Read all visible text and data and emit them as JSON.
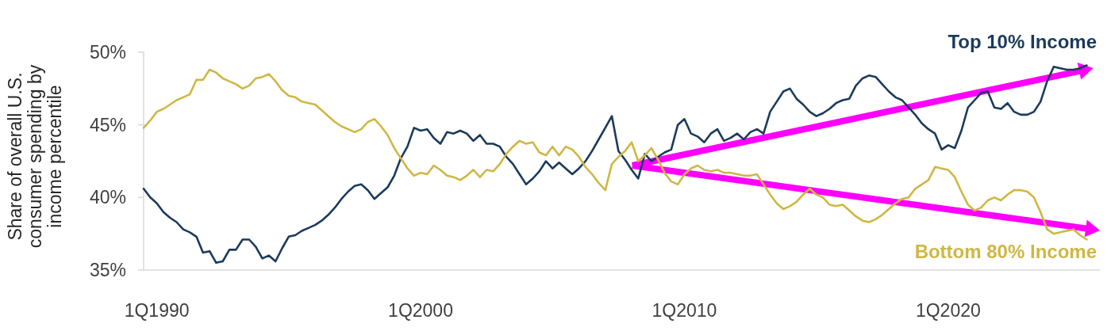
{
  "chart_data": {
    "type": "line",
    "ylabel": "Share of overall U.S. consumer spending by income percentile",
    "categories": [
      null,
      null,
      "1Q1990",
      null,
      null,
      null,
      null,
      null,
      null,
      null,
      null,
      null,
      null,
      null,
      null,
      null,
      null,
      null,
      null,
      null,
      null,
      null,
      null,
      null,
      null,
      null,
      null,
      null,
      null,
      null,
      null,
      null,
      null,
      null,
      null,
      null,
      null,
      null,
      null,
      null,
      null,
      null,
      "1Q2000",
      null,
      null,
      null,
      null,
      null,
      null,
      null,
      null,
      null,
      null,
      null,
      null,
      null,
      null,
      null,
      null,
      null,
      null,
      null,
      null,
      null,
      null,
      null,
      null,
      null,
      null,
      null,
      null,
      null,
      null,
      null,
      null,
      null,
      null,
      null,
      null,
      null,
      null,
      null,
      "1Q2010",
      null,
      null,
      null,
      null,
      null,
      null,
      null,
      null,
      null,
      null,
      null,
      null,
      null,
      null,
      null,
      null,
      null,
      null,
      null,
      null,
      null,
      null,
      null,
      null,
      null,
      null,
      null,
      null,
      null,
      null,
      null,
      null,
      null,
      null,
      null,
      null,
      null,
      null,
      null,
      "1Q2020",
      null,
      null,
      null,
      null,
      null,
      null,
      null,
      null,
      null,
      null,
      null,
      null,
      null,
      null,
      null,
      null,
      null,
      null,
      null,
      null,
      null,
      null,
      null
    ],
    "ylim": [
      35,
      50
    ],
    "yticks": [
      {
        "value": 35,
        "label": "35%"
      },
      {
        "value": 40,
        "label": "40%"
      },
      {
        "value": 45,
        "label": "45%"
      },
      {
        "value": 50,
        "label": "50%"
      }
    ],
    "series": [
      {
        "name": "Top 10% Income",
        "color": "#1b3a5c",
        "values": [
          40.6,
          40.0,
          39.6,
          39.0,
          38.6,
          38.3,
          37.8,
          37.6,
          37.3,
          36.2,
          36.3,
          35.5,
          35.6,
          36.4,
          36.4,
          37.1,
          37.1,
          36.6,
          35.8,
          36.0,
          35.6,
          36.5,
          37.3,
          37.4,
          37.7,
          37.9,
          38.1,
          38.4,
          38.8,
          39.3,
          39.9,
          40.4,
          40.8,
          40.9,
          40.5,
          39.9,
          40.3,
          40.7,
          41.5,
          42.7,
          43.5,
          44.8,
          44.6,
          44.7,
          44.1,
          43.7,
          44.5,
          44.4,
          44.6,
          44.4,
          43.9,
          44.3,
          43.7,
          43.7,
          43.5,
          42.8,
          42.3,
          41.6,
          40.9,
          41.3,
          41.8,
          42.5,
          42.0,
          42.4,
          42.0,
          41.6,
          42.0,
          42.5,
          43.2,
          44.0,
          44.8,
          45.6,
          43.2,
          42.6,
          41.9,
          41.3,
          43.0,
          42.5,
          42.8,
          43.1,
          43.3,
          45.0,
          45.4,
          44.4,
          44.2,
          43.8,
          44.4,
          44.7,
          43.9,
          44.1,
          44.4,
          44.0,
          44.5,
          44.7,
          44.4,
          45.9,
          46.6,
          47.3,
          47.5,
          46.8,
          46.4,
          45.9,
          45.6,
          45.8,
          46.1,
          46.5,
          46.7,
          46.8,
          47.7,
          48.2,
          48.4,
          48.3,
          47.8,
          47.3,
          46.9,
          46.7,
          46.2,
          45.7,
          45.1,
          44.7,
          44.4,
          43.3,
          43.6,
          43.4,
          44.6,
          46.2,
          46.7,
          47.2,
          47.3,
          46.2,
          46.1,
          46.5,
          45.9,
          45.7,
          45.7,
          45.9,
          46.6,
          48.0,
          49.0,
          48.9,
          48.8,
          48.8,
          48.9,
          49.1,
          null,
          null
        ]
      },
      {
        "name": "Bottom 80% Income",
        "color": "#cfb743",
        "values": [
          44.8,
          45.3,
          45.9,
          46.1,
          46.4,
          46.7,
          46.9,
          47.1,
          48.1,
          48.1,
          48.8,
          48.6,
          48.2,
          48.0,
          47.8,
          47.5,
          47.7,
          48.2,
          48.3,
          48.5,
          48.0,
          47.4,
          47.0,
          46.9,
          46.6,
          46.5,
          46.4,
          46.0,
          45.6,
          45.2,
          44.9,
          44.7,
          44.5,
          44.7,
          45.2,
          45.4,
          44.9,
          44.3,
          43.4,
          42.7,
          42.0,
          41.5,
          41.7,
          41.6,
          42.2,
          41.9,
          41.5,
          41.4,
          41.2,
          41.5,
          41.9,
          41.4,
          41.9,
          41.8,
          42.3,
          43.0,
          43.5,
          43.9,
          43.7,
          43.8,
          43.1,
          42.9,
          43.5,
          42.9,
          43.5,
          43.3,
          42.8,
          42.1,
          41.6,
          41.0,
          40.5,
          42.3,
          42.8,
          43.2,
          43.8,
          42.5,
          42.9,
          43.4,
          42.6,
          41.7,
          41.1,
          40.9,
          41.6,
          42.0,
          42.2,
          41.9,
          41.8,
          41.9,
          41.7,
          41.7,
          41.6,
          41.5,
          41.5,
          41.6,
          40.9,
          40.2,
          39.6,
          39.2,
          39.4,
          39.7,
          40.2,
          40.6,
          40.2,
          40.0,
          39.5,
          39.4,
          39.5,
          39.1,
          38.7,
          38.4,
          38.3,
          38.5,
          38.8,
          39.2,
          39.6,
          39.9,
          40.0,
          40.6,
          40.9,
          41.2,
          42.1,
          42.0,
          41.9,
          41.4,
          40.4,
          39.5,
          39.1,
          39.3,
          39.8,
          40.0,
          39.8,
          40.2,
          40.5,
          40.5,
          40.4,
          40.0,
          39.0,
          37.8,
          37.5,
          37.6,
          37.7,
          37.8,
          37.4,
          37.1,
          null,
          null
        ]
      }
    ]
  }
}
